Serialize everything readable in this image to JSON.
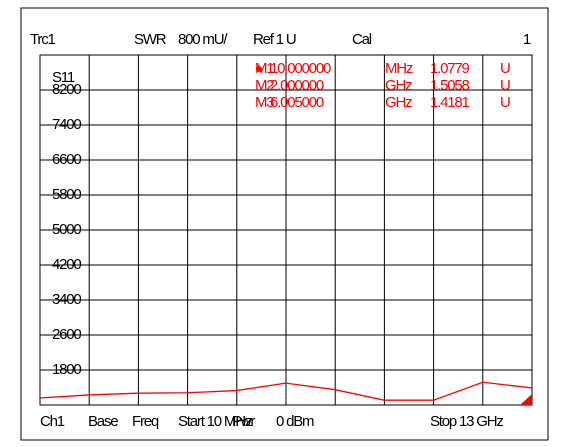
{
  "chart_data": {
    "type": "line",
    "header": [
      "Trc1",
      "SWR",
      "800 mU/",
      "Ref 1 U",
      "Cal",
      "1"
    ],
    "trace_label": "S11",
    "footer": [
      "Ch1",
      "Base",
      "Freq",
      "Start 10 MHz",
      "Pwr",
      "0 dBm",
      "Stop 13 GHz"
    ],
    "markers": [
      [
        "M1",
        "10.000000",
        "MHz",
        "1.0779",
        "U"
      ],
      [
        "M2",
        "2.000000",
        "GHz",
        "1.5058",
        "U"
      ],
      [
        "M3",
        "6.005000",
        "GHz",
        "1.4181",
        "U"
      ]
    ],
    "x": [
      0.01,
      1.3,
      2.6,
      3.9,
      5.2,
      6.5,
      7.8,
      9.1,
      10.4,
      11.7,
      13
    ],
    "series": [
      {
        "name": "Trc1",
        "color": "#ff0000",
        "values": [
          1160,
          1230,
          1270,
          1280,
          1330,
          1500,
          1350,
          1110,
          1110,
          1520,
          1390
        ]
      }
    ],
    "xlim": [
      0.01,
      13
    ],
    "ylim": [
      1000,
      9000
    ],
    "yticks": [
      1800,
      2600,
      3400,
      4200,
      5000,
      5800,
      6600,
      7400,
      8200
    ],
    "grid": true
  }
}
